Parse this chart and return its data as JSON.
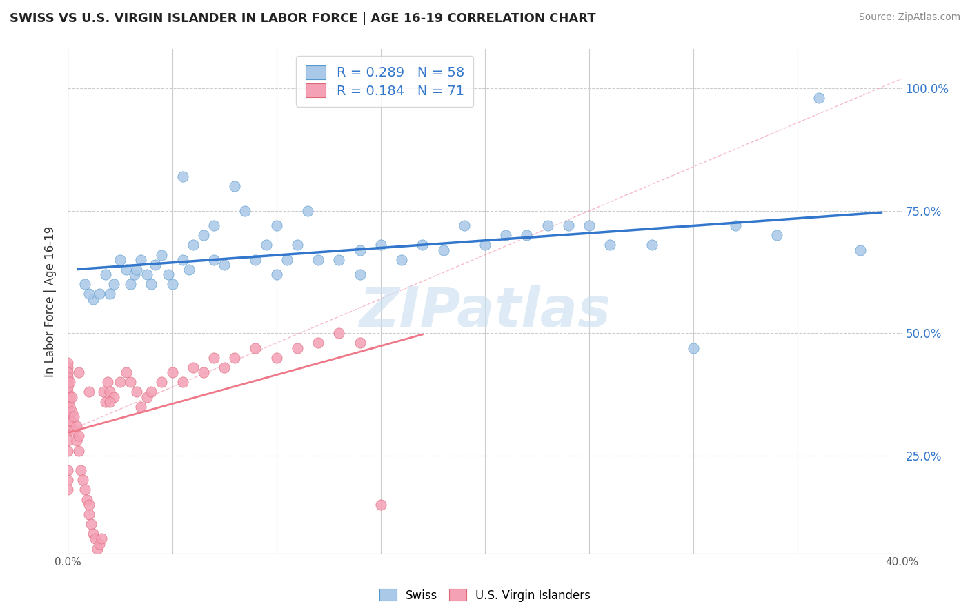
{
  "title": "SWISS VS U.S. VIRGIN ISLANDER IN LABOR FORCE | AGE 16-19 CORRELATION CHART",
  "source": "Source: ZipAtlas.com",
  "ylabel": "In Labor Force | Age 16-19",
  "xlim": [
    0.0,
    0.4
  ],
  "ylim": [
    0.05,
    1.08
  ],
  "xticks": [
    0.0,
    0.05,
    0.1,
    0.15,
    0.2,
    0.25,
    0.3,
    0.35,
    0.4
  ],
  "xticklabels": [
    "0.0%",
    "",
    "",
    "",
    "",
    "",
    "",
    "",
    "40.0%"
  ],
  "yticks": [
    0.25,
    0.5,
    0.75,
    1.0
  ],
  "yticklabels": [
    "25.0%",
    "50.0%",
    "75.0%",
    "100.0%"
  ],
  "swiss_R": 0.289,
  "swiss_N": 58,
  "usvi_R": 0.184,
  "usvi_N": 71,
  "swiss_color": "#aac8e8",
  "swiss_edge_color": "#5599cc",
  "usvi_color": "#f4a0b5",
  "usvi_edge_color": "#dd6677",
  "swiss_line_color": "#3377cc",
  "usvi_line_color": "#ee7788",
  "legend_r_color": "#3377cc",
  "watermark": "ZIPatlas",
  "watermark_color": "#c8dff0",
  "grid_color": "#cccccc",
  "background_color": "#ffffff",
  "swiss_x": [
    0.008,
    0.012,
    0.018,
    0.022,
    0.025,
    0.028,
    0.03,
    0.032,
    0.033,
    0.035,
    0.038,
    0.04,
    0.042,
    0.045,
    0.048,
    0.05,
    0.055,
    0.058,
    0.06,
    0.065,
    0.07,
    0.075,
    0.08,
    0.085,
    0.09,
    0.095,
    0.1,
    0.105,
    0.11,
    0.115,
    0.12,
    0.13,
    0.14,
    0.15,
    0.16,
    0.17,
    0.18,
    0.19,
    0.2,
    0.21,
    0.22,
    0.23,
    0.24,
    0.25,
    0.26,
    0.28,
    0.3,
    0.32,
    0.34,
    0.36,
    0.02,
    0.015,
    0.01,
    0.055,
    0.07,
    0.1,
    0.14,
    0.38
  ],
  "swiss_y": [
    0.6,
    0.57,
    0.62,
    0.6,
    0.65,
    0.63,
    0.6,
    0.62,
    0.63,
    0.65,
    0.62,
    0.6,
    0.64,
    0.66,
    0.62,
    0.6,
    0.65,
    0.63,
    0.68,
    0.7,
    0.72,
    0.64,
    0.8,
    0.75,
    0.65,
    0.68,
    0.72,
    0.65,
    0.68,
    0.75,
    0.65,
    0.65,
    0.67,
    0.68,
    0.65,
    0.68,
    0.67,
    0.72,
    0.68,
    0.7,
    0.7,
    0.72,
    0.72,
    0.72,
    0.68,
    0.68,
    0.47,
    0.72,
    0.7,
    0.98,
    0.58,
    0.58,
    0.58,
    0.82,
    0.65,
    0.62,
    0.62,
    0.67
  ],
  "usvi_x": [
    0.0,
    0.0,
    0.0,
    0.0,
    0.0,
    0.0,
    0.0,
    0.0,
    0.0,
    0.0,
    0.0,
    0.0,
    0.0,
    0.0,
    0.0,
    0.0,
    0.0,
    0.001,
    0.001,
    0.001,
    0.002,
    0.002,
    0.002,
    0.003,
    0.003,
    0.004,
    0.004,
    0.005,
    0.005,
    0.006,
    0.007,
    0.008,
    0.009,
    0.01,
    0.01,
    0.011,
    0.012,
    0.013,
    0.014,
    0.015,
    0.016,
    0.017,
    0.018,
    0.019,
    0.02,
    0.022,
    0.025,
    0.028,
    0.03,
    0.033,
    0.035,
    0.038,
    0.04,
    0.045,
    0.05,
    0.055,
    0.06,
    0.065,
    0.07,
    0.075,
    0.08,
    0.09,
    0.1,
    0.11,
    0.12,
    0.13,
    0.14,
    0.15,
    0.01,
    0.02,
    0.005
  ],
  "usvi_y": [
    0.38,
    0.4,
    0.43,
    0.44,
    0.42,
    0.39,
    0.41,
    0.35,
    0.36,
    0.33,
    0.32,
    0.3,
    0.28,
    0.26,
    0.22,
    0.2,
    0.18,
    0.35,
    0.37,
    0.4,
    0.32,
    0.34,
    0.37,
    0.3,
    0.33,
    0.28,
    0.31,
    0.26,
    0.29,
    0.22,
    0.2,
    0.18,
    0.16,
    0.13,
    0.15,
    0.11,
    0.09,
    0.08,
    0.06,
    0.07,
    0.08,
    0.38,
    0.36,
    0.4,
    0.38,
    0.37,
    0.4,
    0.42,
    0.4,
    0.38,
    0.35,
    0.37,
    0.38,
    0.4,
    0.42,
    0.4,
    0.43,
    0.42,
    0.45,
    0.43,
    0.45,
    0.47,
    0.45,
    0.47,
    0.48,
    0.5,
    0.48,
    0.15,
    0.38,
    0.36,
    0.42
  ]
}
